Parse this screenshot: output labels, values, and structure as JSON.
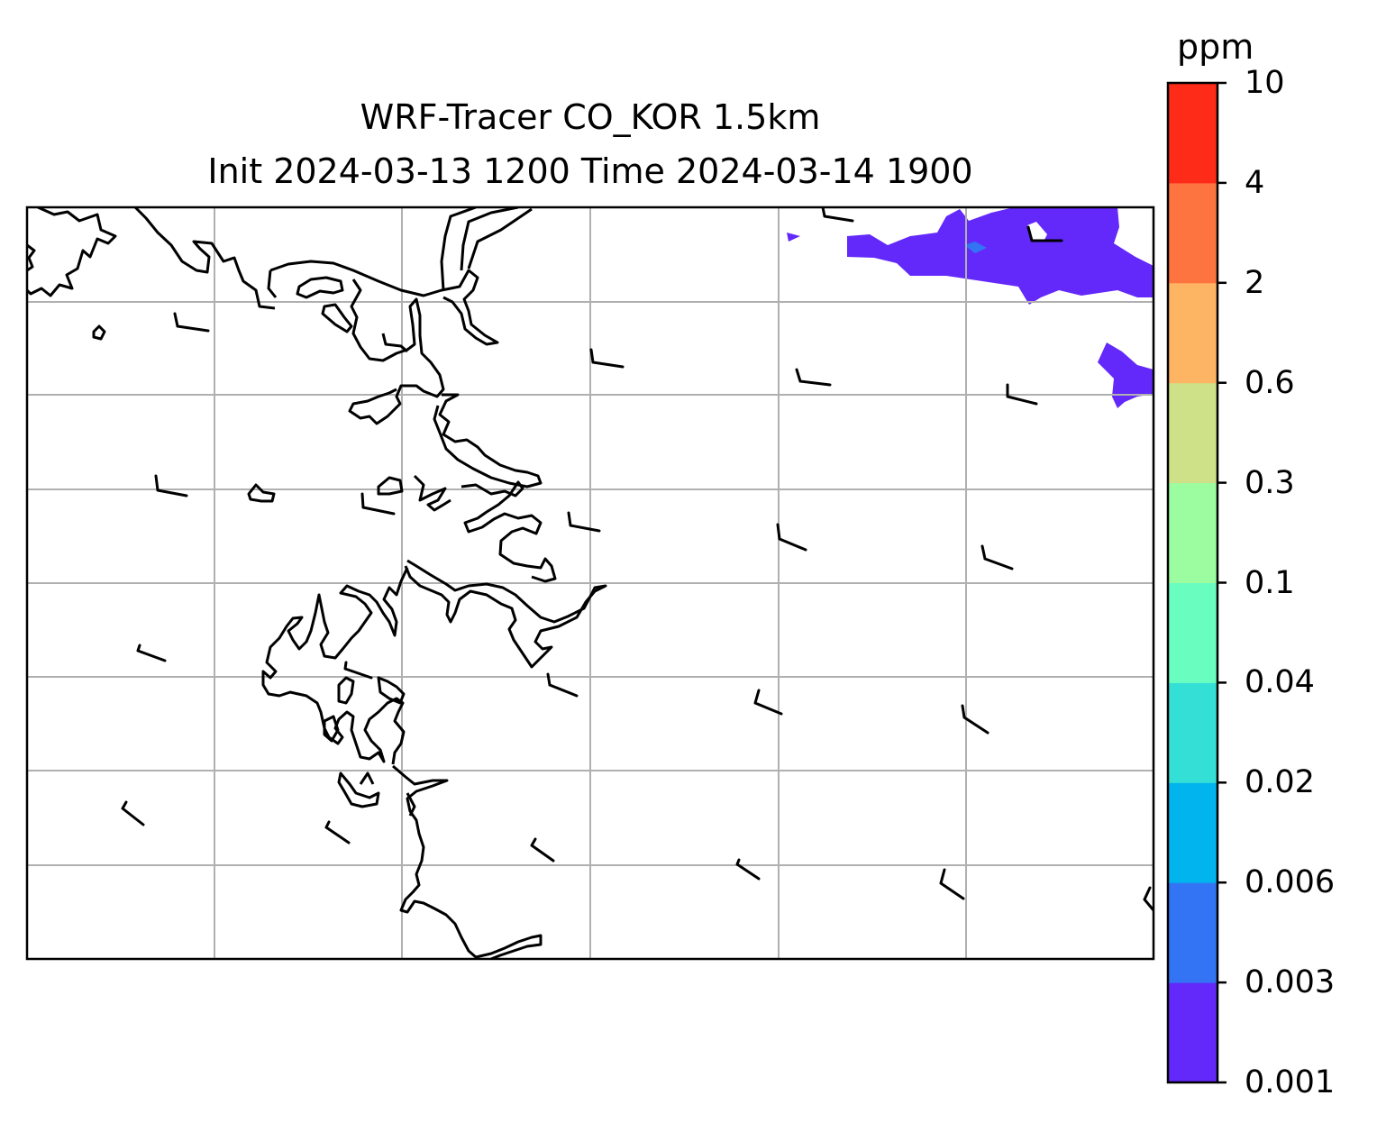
{
  "title": {
    "line1": "WRF-Tracer CO_KOR 1.5km",
    "line2": "Init 2024-03-13 1200 Time 2024-03-14 1900"
  },
  "colorbar": {
    "unit": "ppm",
    "levels": [
      "0.001",
      "0.003",
      "0.006",
      "0.02",
      "0.04",
      "0.1",
      "0.3",
      "0.6",
      "2",
      "4",
      "10"
    ],
    "colors": [
      "#6328fa",
      "#3374f4",
      "#01b4ed",
      "#34e0d6",
      "#69fdc0",
      "#9bfda0",
      "#cfe188",
      "#fdb463",
      "#fe7440",
      "#fe2b18"
    ]
  },
  "map": {
    "coastline_color": "#000000",
    "grid_color": "#b0b0b0",
    "tracer_color": "#6328fa",
    "tracer_color_secondary": "#3374f4"
  }
}
